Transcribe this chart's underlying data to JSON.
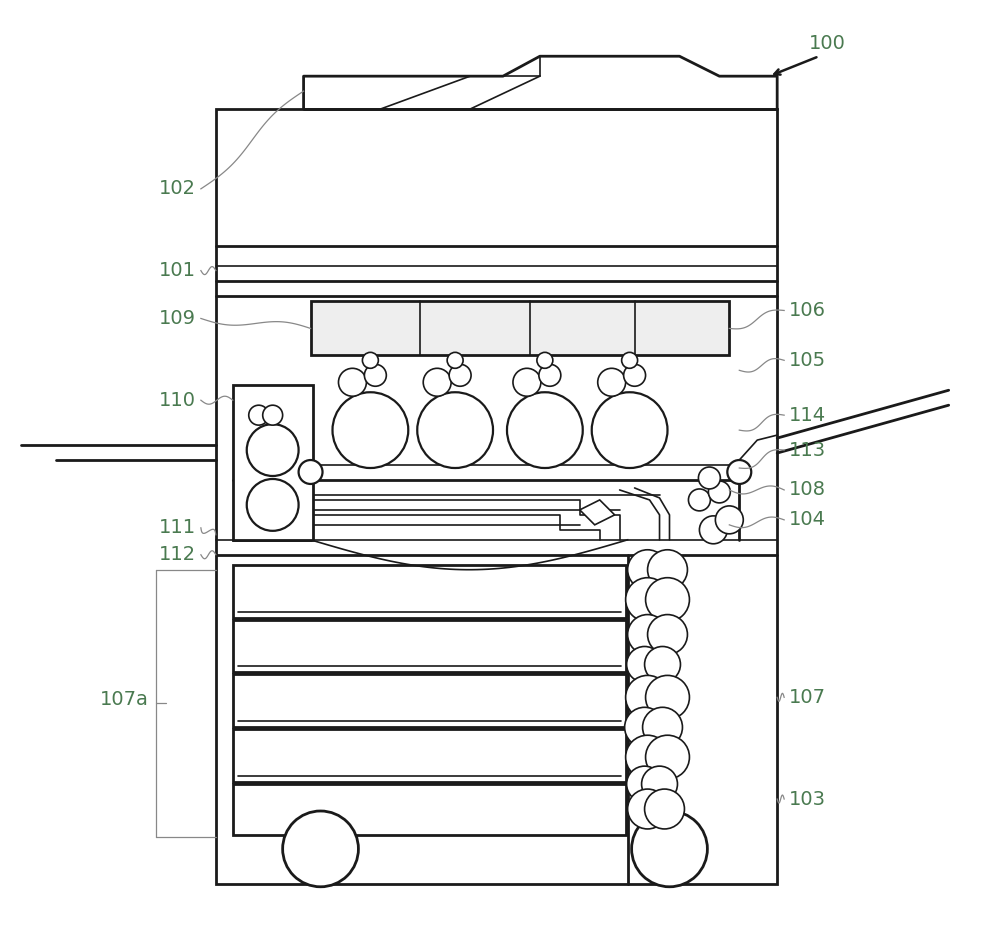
{
  "bg_color": "#ffffff",
  "line_color": "#1a1a1a",
  "label_color": "#4a7a50",
  "figsize": [
    10.0,
    9.44
  ],
  "dpi": 100
}
